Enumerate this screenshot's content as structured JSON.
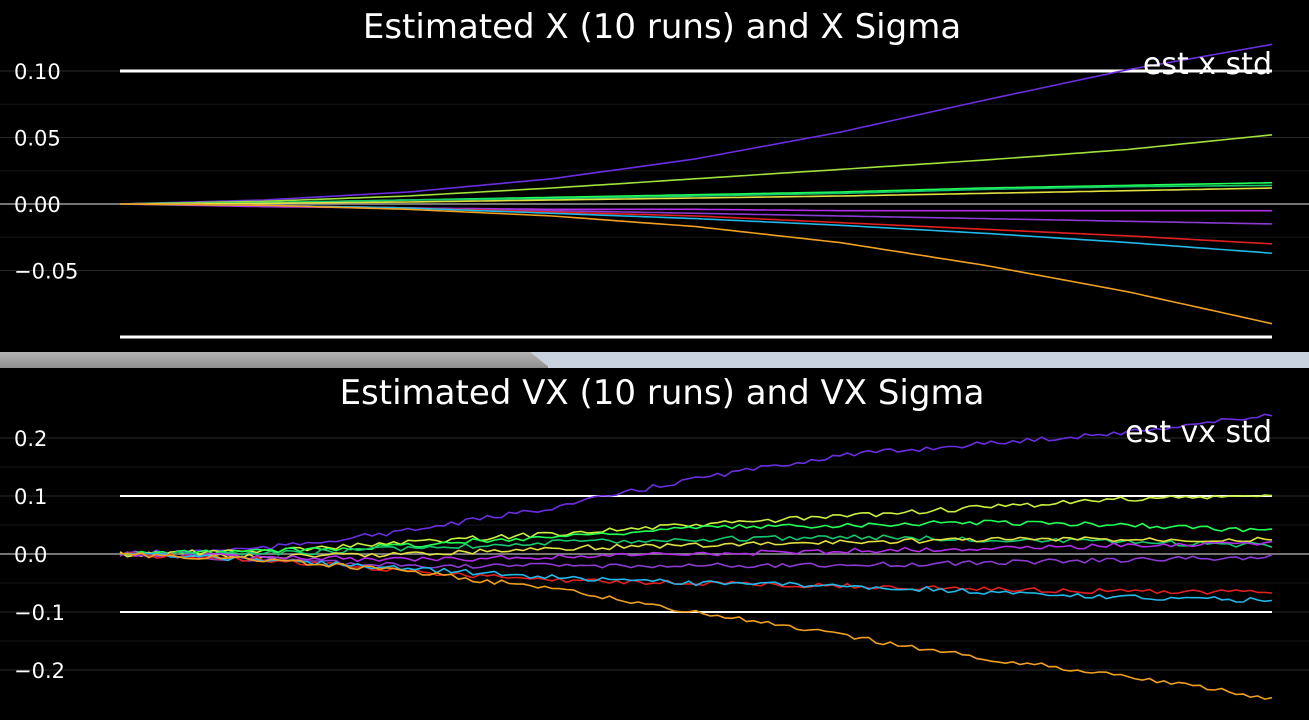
{
  "chart_data": [
    {
      "type": "line",
      "title": "Estimated X (10 runs) and X Sigma",
      "legend": "est x std",
      "legend_position": "top-right",
      "grid": true,
      "ylim": [
        -0.1,
        0.1
      ],
      "yticks": [
        0.1,
        0.05,
        0.0,
        -0.05
      ],
      "ytick_labels": [
        "0.10",
        "0.05",
        "0.00",
        "−0.05"
      ],
      "sigma_bounds": [
        0.1,
        -0.1
      ],
      "series": [
        {
          "color": "#6a2ee0",
          "values": [
            0,
            0.003,
            0.009,
            0.019,
            0.034,
            0.054,
            0.078,
            0.101,
            0.12
          ]
        },
        {
          "color": "#9fe03c",
          "values": [
            0,
            0.002,
            0.006,
            0.012,
            0.019,
            0.026,
            0.033,
            0.041,
            0.052
          ]
        },
        {
          "color": "#22ff55",
          "values": [
            0,
            0.001,
            0.003,
            0.005,
            0.007,
            0.009,
            0.012,
            0.014,
            0.016
          ]
        },
        {
          "color": "#14c86e",
          "values": [
            0,
            0.001,
            0.003,
            0.004,
            0.006,
            0.008,
            0.011,
            0.013,
            0.014
          ]
        },
        {
          "color": "#e0e040",
          "values": [
            0,
            0.0005,
            0.0015,
            0.003,
            0.0045,
            0.006,
            0.008,
            0.01,
            0.012
          ]
        },
        {
          "color": "#b02ee8",
          "values": [
            0,
            -0.002,
            -0.003,
            -0.004,
            -0.004,
            -0.005,
            -0.005,
            -0.005,
            -0.005
          ]
        },
        {
          "color": "#8a3ad0",
          "values": [
            0,
            -0.001,
            -0.003,
            -0.005,
            -0.007,
            -0.009,
            -0.011,
            -0.013,
            -0.015
          ]
        },
        {
          "color": "#e02020",
          "values": [
            0,
            -0.001,
            -0.003,
            -0.006,
            -0.009,
            -0.014,
            -0.019,
            -0.024,
            -0.03
          ]
        },
        {
          "color": "#20b8e8",
          "values": [
            0,
            -0.001,
            -0.003,
            -0.007,
            -0.011,
            -0.016,
            -0.022,
            -0.029,
            -0.037
          ]
        },
        {
          "color": "#f0a020",
          "values": [
            0,
            -0.001,
            -0.004,
            -0.009,
            -0.017,
            -0.029,
            -0.046,
            -0.066,
            -0.09
          ]
        }
      ]
    },
    {
      "type": "line",
      "title": "Estimated VX (10 runs) and VX Sigma",
      "legend": "est vx std",
      "legend_position": "top-right",
      "grid": true,
      "ylim": [
        -0.27,
        0.27
      ],
      "yticks": [
        0.2,
        0.1,
        0.0,
        -0.1,
        -0.2
      ],
      "ytick_labels": [
        "0.2",
        "0.1",
        "0.0",
        "−0.1",
        "−0.2"
      ],
      "sigma_bounds": [
        0.1,
        -0.1
      ],
      "series": [
        {
          "color": "#6a2ee0",
          "values": [
            0,
            0.01,
            0.04,
            0.08,
            0.13,
            0.17,
            0.19,
            0.21,
            0.24
          ]
        },
        {
          "color": "#c8f040",
          "values": [
            0,
            0.005,
            0.02,
            0.035,
            0.05,
            0.065,
            0.08,
            0.095,
            0.1
          ]
        },
        {
          "color": "#22ff55",
          "values": [
            0,
            0.005,
            0.015,
            0.03,
            0.045,
            0.05,
            0.055,
            0.05,
            0.04
          ]
        },
        {
          "color": "#14c86e",
          "values": [
            0,
            0.0,
            0.01,
            0.02,
            0.025,
            0.03,
            0.025,
            0.02,
            0.015
          ]
        },
        {
          "color": "#e0e040",
          "values": [
            0,
            -0.005,
            0.0,
            0.01,
            0.015,
            0.02,
            0.025,
            0.025,
            0.025
          ]
        },
        {
          "color": "#b02ee8",
          "values": [
            0,
            -0.005,
            -0.01,
            -0.005,
            0.0,
            0.005,
            0.01,
            0.015,
            0.02
          ]
        },
        {
          "color": "#8a3ad0",
          "values": [
            0,
            -0.01,
            -0.02,
            -0.02,
            -0.02,
            -0.02,
            -0.015,
            -0.01,
            -0.005
          ]
        },
        {
          "color": "#e02020",
          "values": [
            0,
            -0.01,
            -0.03,
            -0.045,
            -0.05,
            -0.055,
            -0.06,
            -0.065,
            -0.065
          ]
        },
        {
          "color": "#20b8e8",
          "values": [
            0,
            -0.01,
            -0.025,
            -0.04,
            -0.05,
            -0.055,
            -0.065,
            -0.075,
            -0.08
          ]
        },
        {
          "color": "#f0a020",
          "values": [
            0,
            -0.01,
            -0.03,
            -0.06,
            -0.1,
            -0.14,
            -0.18,
            -0.21,
            -0.25
          ]
        }
      ]
    }
  ]
}
